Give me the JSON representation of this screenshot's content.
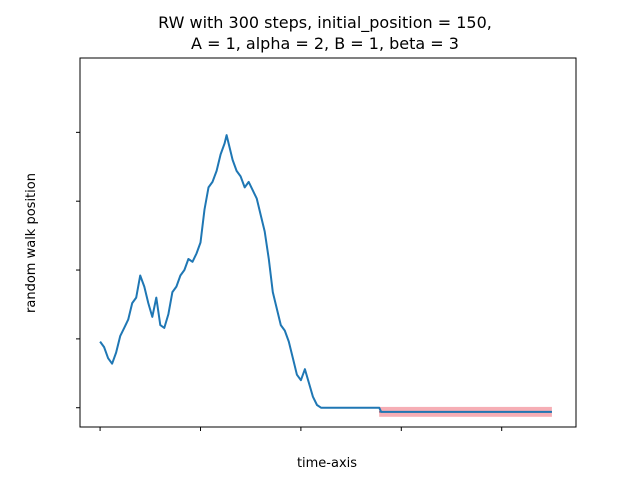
{
  "chart_data": {
    "type": "line",
    "title": [
      "RW with 300 steps, initial_position = 150,",
      "A = 1, alpha = 2, B = 1, beta = 3"
    ],
    "xlabel": "time-axis",
    "ylabel": "random walk position",
    "xlim": [
      -10,
      237
    ],
    "ylim": [
      -7,
      127
    ],
    "x_ticks": [
      0,
      50,
      100,
      150,
      200
    ],
    "y_ticks": [
      0,
      25,
      50,
      75,
      100
    ],
    "tick_labels_shown": false,
    "grid": false,
    "legend": "none",
    "line_color": "#1f77b4",
    "band_color": "#f4a0a8",
    "band_line_color": "#7a4b6a",
    "series": [
      {
        "x": [
          0,
          2,
          4,
          6,
          8,
          10,
          12,
          14,
          16,
          18,
          20,
          22,
          24,
          26,
          28,
          30,
          32,
          34,
          36,
          38,
          40,
          42,
          44,
          46,
          48,
          50,
          52,
          54,
          56,
          58,
          60,
          62,
          63,
          64,
          66,
          68,
          70,
          72,
          74,
          76,
          78,
          80,
          82,
          84,
          86,
          88,
          90,
          92,
          94,
          96,
          98,
          100,
          102,
          104,
          106,
          108,
          110,
          139,
          140,
          150,
          160,
          170,
          180,
          190,
          200,
          210,
          220,
          225
        ],
        "y": [
          24,
          22,
          18,
          16,
          20,
          26,
          29,
          32,
          38,
          40,
          48,
          44,
          38,
          33,
          40,
          30,
          29,
          34,
          42,
          44,
          48,
          50,
          54,
          53,
          56,
          60,
          72,
          80,
          82,
          86,
          92,
          96,
          99,
          96,
          90,
          86,
          84,
          80,
          82,
          79,
          76,
          70,
          64,
          54,
          42,
          36,
          30,
          28,
          24,
          18,
          12,
          10,
          14,
          9,
          4,
          1,
          0,
          0,
          -1.5,
          -1.5,
          -1.5,
          -1.5,
          -1.5,
          -1.5,
          -1.5,
          -1.5,
          -1.5,
          -1.5
        ]
      }
    ],
    "band": {
      "x": [
        139,
        225
      ],
      "y": -1.5,
      "half_width": 1.8
    }
  }
}
